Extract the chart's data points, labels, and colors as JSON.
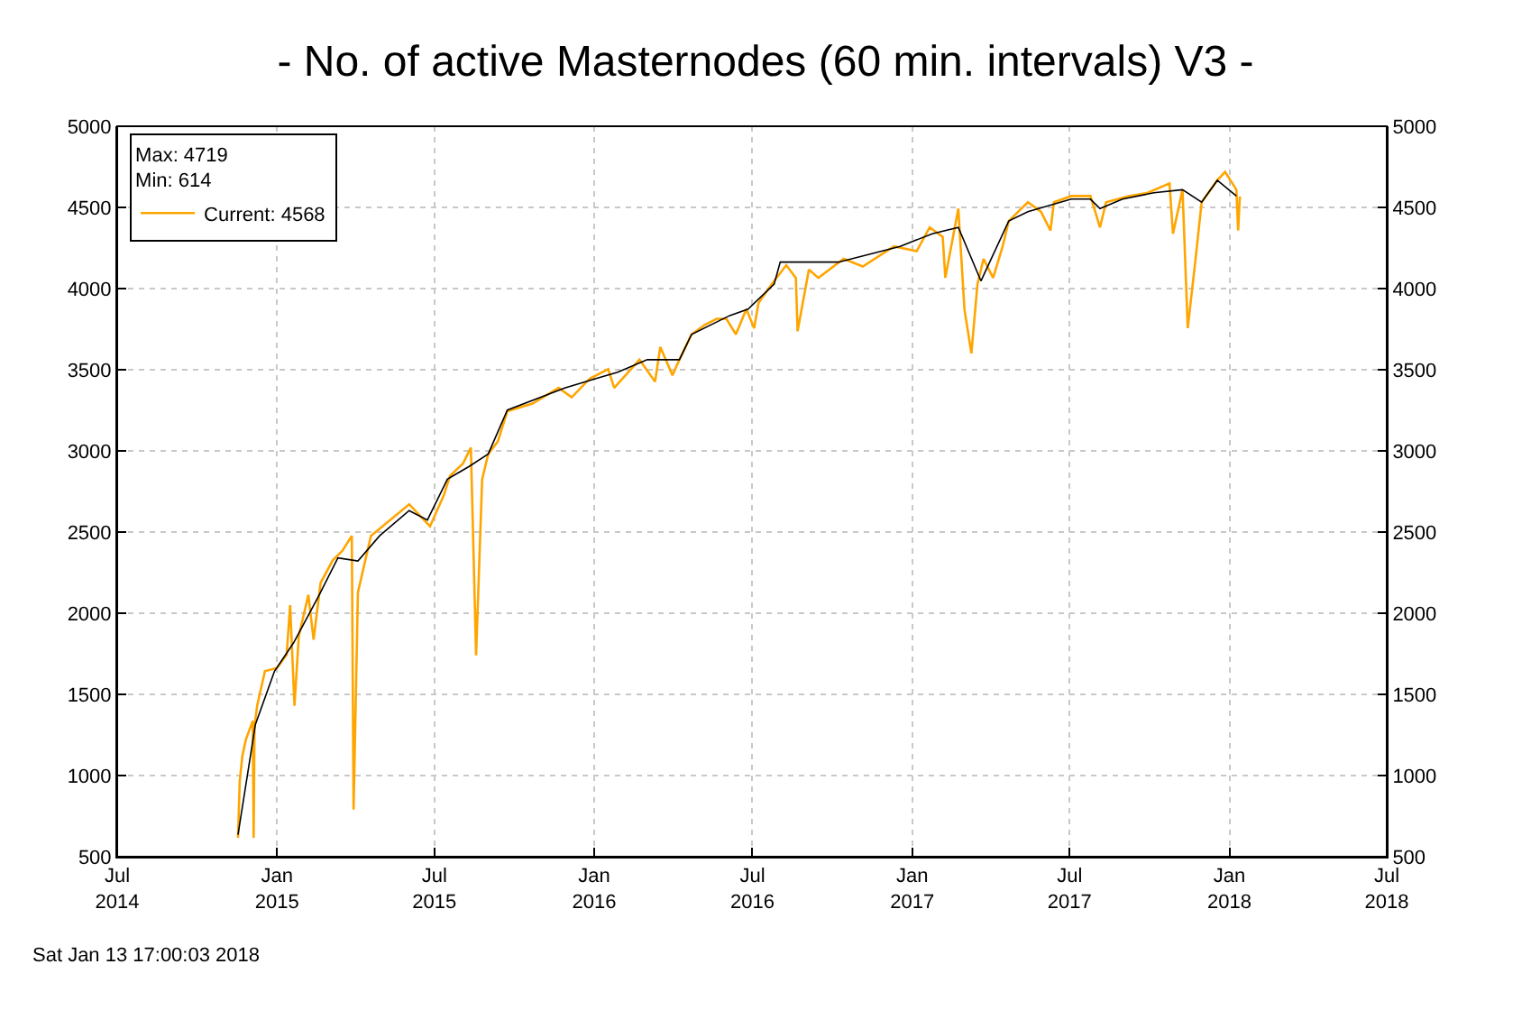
{
  "chart_data": {
    "type": "line",
    "title": "- No. of active Masternodes (60 min. intervals) V3 -",
    "legend_title": "Max: 4719\nMin: 614",
    "annotations": [
      "Sat Jan 13 17:00:03 2018"
    ],
    "series": [
      {
        "name": "Current: 4568",
        "color": "#ffa500",
        "x": [
          "2014-11-17",
          "2014-11-19",
          "2014-11-22",
          "2014-11-26",
          "2014-12-04",
          "2014-12-05",
          "2014-12-06",
          "2014-12-09",
          "2014-12-18",
          "2015-01-01",
          "2015-01-12",
          "2015-01-16",
          "2015-01-21",
          "2015-01-26",
          "2015-02-06",
          "2015-02-12",
          "2015-02-20",
          "2015-03-06",
          "2015-03-17",
          "2015-03-28",
          "2015-03-30",
          "2015-04-04",
          "2015-04-19",
          "2015-05-11",
          "2015-06-02",
          "2015-06-26",
          "2015-07-12",
          "2015-07-19",
          "2015-08-03",
          "2015-08-12",
          "2015-08-18",
          "2015-08-25",
          "2015-09-01",
          "2015-09-12",
          "2015-09-23",
          "2015-10-22",
          "2015-11-21",
          "2015-12-06",
          "2015-12-27",
          "2016-01-17",
          "2016-01-24",
          "2016-02-22",
          "2016-03-11",
          "2016-03-17",
          "2016-03-31",
          "2016-04-08",
          "2016-04-22",
          "2016-05-07",
          "2016-05-21",
          "2016-06-01",
          "2016-06-12",
          "2016-06-24",
          "2016-07-03",
          "2016-07-08",
          "2016-07-26",
          "2016-08-09",
          "2016-08-20",
          "2016-08-22",
          "2016-09-04",
          "2016-09-15",
          "2016-10-14",
          "2016-11-05",
          "2016-12-11",
          "2017-01-06",
          "2017-01-21",
          "2017-02-05",
          "2017-02-08",
          "2017-02-23",
          "2017-03-02",
          "2017-03-10",
          "2017-03-17",
          "2017-03-24",
          "2017-04-04",
          "2017-04-15",
          "2017-04-22",
          "2017-05-14",
          "2017-05-29",
          "2017-06-09",
          "2017-06-13",
          "2017-07-03",
          "2017-07-25",
          "2017-08-05",
          "2017-08-12",
          "2017-09-07",
          "2017-09-29",
          "2017-10-24",
          "2017-10-28",
          "2017-11-08",
          "2017-11-14",
          "2017-11-23",
          "2017-11-30",
          "2017-12-18",
          "2017-12-27",
          "2018-01-09",
          "2018-01-11",
          "2018-01-13"
        ],
        "values": [
          616,
          965,
          1120,
          1220,
          1337,
          616,
          1300,
          1430,
          1643,
          1663,
          1744,
          2050,
          1430,
          1860,
          2113,
          1837,
          2186,
          2326,
          2384,
          2477,
          791,
          2128,
          2477,
          2574,
          2671,
          2535,
          2729,
          2846,
          2923,
          3020,
          1740,
          2826,
          2981,
          3058,
          3245,
          3291,
          3388,
          3330,
          3446,
          3504,
          3388,
          3562,
          3427,
          3640,
          3466,
          3562,
          3718,
          3776,
          3814,
          3814,
          3718,
          3873,
          3756,
          3911,
          4047,
          4144,
          4066,
          3737,
          4117,
          4066,
          4183,
          4136,
          4260,
          4230,
          4377,
          4318,
          4066,
          4493,
          3873,
          3601,
          4027,
          4183,
          4066,
          4260,
          4416,
          4532,
          4474,
          4358,
          4532,
          4570,
          4570,
          4377,
          4532,
          4570,
          4590,
          4648,
          4338,
          4609,
          3756,
          4183,
          4532,
          4667,
          4719,
          4609,
          4358,
          4568
        ]
      },
      {
        "color": "#000000",
        "x": [
          "2014-11-17",
          "2014-12-07",
          "2014-12-29",
          "2015-01-20",
          "2015-02-18",
          "2015-03-12",
          "2015-04-04",
          "2015-04-29",
          "2015-06-02",
          "2015-06-23",
          "2015-07-16",
          "2015-08-10",
          "2015-09-01",
          "2015-09-23",
          "2015-11-28",
          "2016-01-03",
          "2016-01-28",
          "2016-03-02",
          "2016-04-08",
          "2016-04-22",
          "2016-06-05",
          "2016-06-26",
          "2016-07-26",
          "2016-08-02",
          "2016-08-24",
          "2016-10-08",
          "2016-12-18",
          "2017-01-24",
          "2017-02-23",
          "2017-03-21",
          "2017-04-22",
          "2017-05-14",
          "2017-07-03",
          "2017-07-25",
          "2017-08-05",
          "2017-08-31",
          "2017-10-06",
          "2017-11-08",
          "2017-11-30",
          "2017-12-18",
          "2018-01-09"
        ],
        "values": [
          636,
          1314,
          1643,
          1818,
          2108,
          2341,
          2322,
          2477,
          2632,
          2574,
          2826,
          2904,
          2981,
          3252,
          3388,
          3446,
          3485,
          3562,
          3562,
          3718,
          3834,
          3873,
          4027,
          4163,
          4163,
          4163,
          4260,
          4338,
          4377,
          4047,
          4416,
          4474,
          4551,
          4551,
          4493,
          4551,
          4590,
          4609,
          4532,
          4667,
          4570
        ]
      }
    ],
    "xlim": [
      "2014-07-01",
      "2018-07-01"
    ],
    "xticks": [
      {
        "value": "2014-07-01",
        "label": "Jul\n2014"
      },
      {
        "value": "2015-01-01",
        "label": "Jan\n2015"
      },
      {
        "value": "2015-07-01",
        "label": "Jul\n2015"
      },
      {
        "value": "2016-01-01",
        "label": "Jan\n2016"
      },
      {
        "value": "2016-07-01",
        "label": "Jul\n2016"
      },
      {
        "value": "2017-01-01",
        "label": "Jan\n2017"
      },
      {
        "value": "2017-07-01",
        "label": "Jul\n2017"
      },
      {
        "value": "2018-01-01",
        "label": "Jan\n2018"
      },
      {
        "value": "2018-07-01",
        "label": "Jul\n2018"
      }
    ],
    "ylim": [
      500,
      5000
    ],
    "yticks": [
      500,
      1000,
      1500,
      2000,
      2500,
      3000,
      3500,
      4000,
      4500,
      5000
    ],
    "y2lim": [
      500,
      5000
    ],
    "y2ticks": [
      500,
      1000,
      1500,
      2000,
      2500,
      3000,
      3500,
      4000,
      4500,
      5000
    ],
    "grid": true,
    "legend": "top left",
    "line_style": "solid",
    "marker": "none"
  }
}
